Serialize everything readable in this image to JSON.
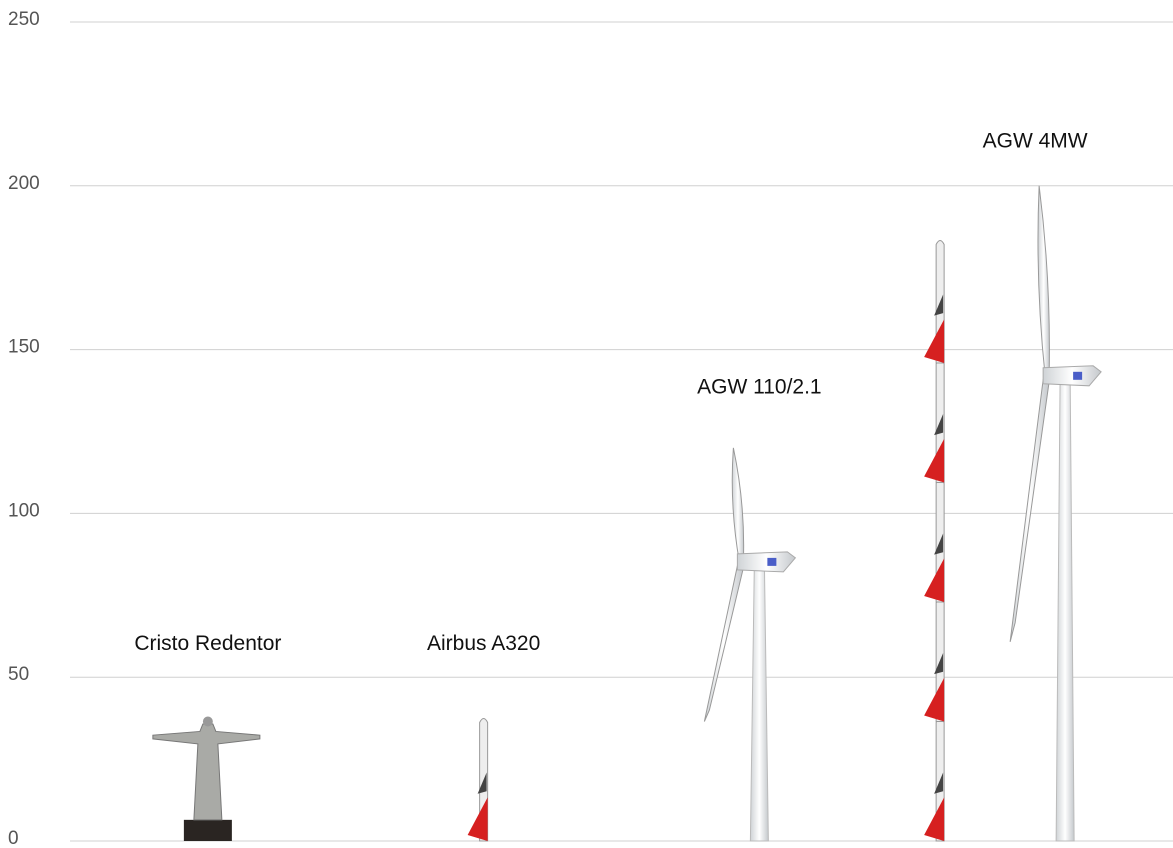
{
  "chart_data": {
    "type": "pictograph",
    "categories": [
      "Cristo Redentor",
      "Airbus A320",
      "AGW 110/2.1",
      "AGW 4MW"
    ],
    "values": [
      38,
      38,
      120,
      200
    ],
    "ylim": [
      0,
      250
    ],
    "yticks": [
      0,
      50,
      100,
      150,
      200,
      250
    ],
    "grid": true
  }
}
